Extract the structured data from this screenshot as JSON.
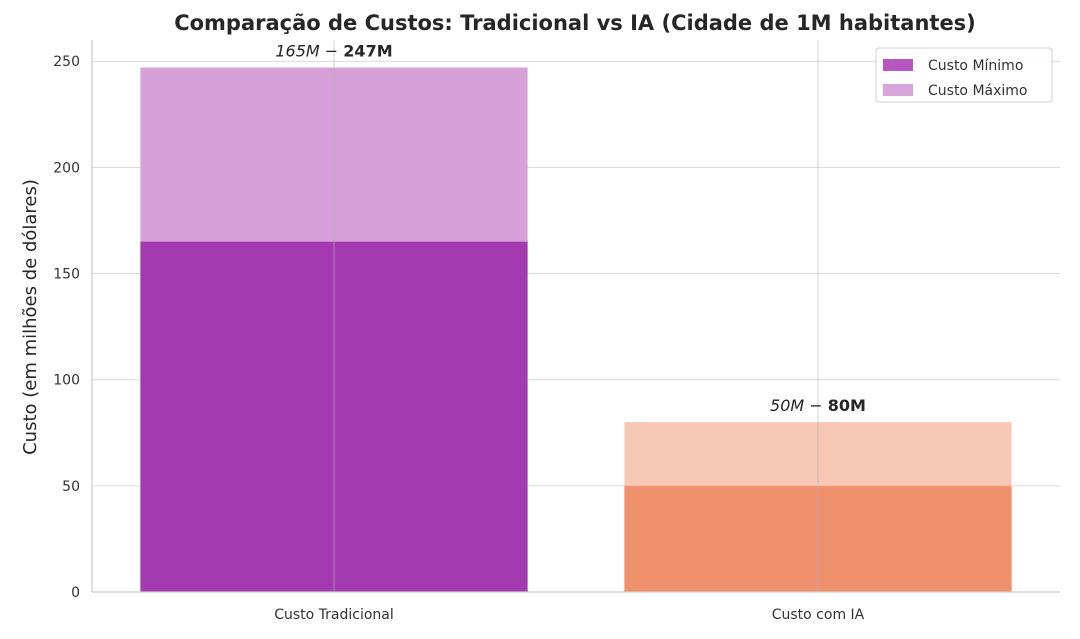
{
  "chart_data": {
    "type": "bar",
    "title": "Comparação de Custos: Tradicional vs IA (Cidade de 1M habitantes)",
    "ylabel": "Custo (em milhões de dólares)",
    "xlabel": "",
    "ylim": [
      0,
      260
    ],
    "yticks": [
      0,
      50,
      100,
      150,
      200,
      250
    ],
    "yticks_labels": [
      "0",
      "50",
      "100",
      "150",
      "200",
      "250"
    ],
    "grid": true,
    "legend_position": "top-right",
    "categories": [
      "Custo Tradicional",
      "Custo com IA"
    ],
    "series": [
      {
        "name": "Custo Mínimo",
        "values": [
          165,
          50
        ],
        "colors": [
          "#a43ab0",
          "#f0916e"
        ]
      },
      {
        "name": "Custo Máximo",
        "values": [
          247,
          80
        ],
        "colors": [
          "#d6a0d8",
          "#f7c8b6"
        ]
      }
    ],
    "annotations": [
      {
        "prefix": "165M − ",
        "bold": "247M"
      },
      {
        "prefix": "50M − ",
        "bold": "80M"
      }
    ],
    "legend_colors": [
      "#b756c2",
      "#d9a4dc"
    ]
  }
}
